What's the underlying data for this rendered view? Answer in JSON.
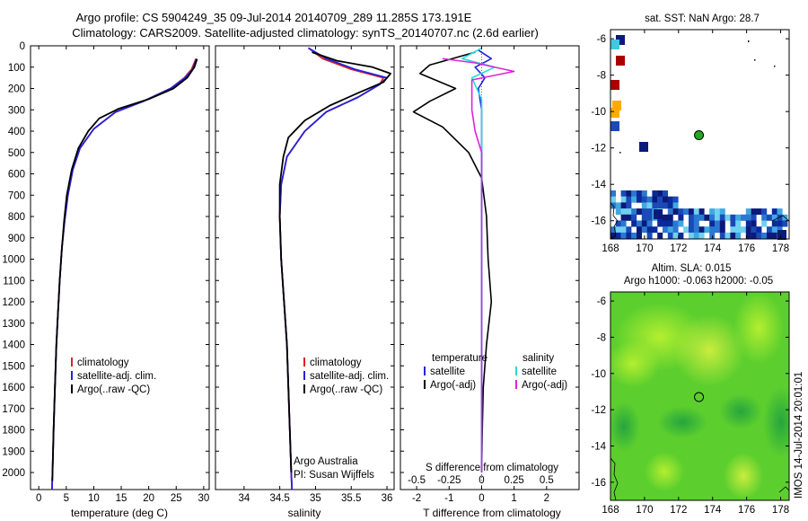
{
  "title": {
    "line1": "Argo profile: CS 5904249_35 09-Jul-2014 20140709_289 11.285S 173.191E",
    "line2": "Climatology: CARS2009. Satellite-adjusted climatology: synTS_20140707.nc (2.6d earlier)"
  },
  "side_label": "IMOS 14-Jul-2014 20:01:01",
  "colors": {
    "climatology": "#dd2222",
    "satellite": "#2222dd",
    "argo": "#000000",
    "cyan": "#22dddd",
    "magenta": "#dd22dd"
  },
  "chart_data": [
    {
      "id": "temperature",
      "type": "line",
      "xlabel": "temperature (deg C)",
      "xlim": [
        -1.5,
        31
      ],
      "ylim": [
        2080,
        0
      ],
      "xticks": [
        "0",
        "5",
        "10",
        "15",
        "20",
        "25",
        "30"
      ],
      "xtick_values": [
        0,
        5,
        10,
        15,
        20,
        25,
        30
      ],
      "yticks": [
        "0",
        "100",
        "200",
        "300",
        "400",
        "500",
        "600",
        "700",
        "800",
        "900",
        "1000",
        "1100",
        "1200",
        "1300",
        "1400",
        "1500",
        "1600",
        "1700",
        "1800",
        "1900",
        "2000"
      ],
      "ytick_values": [
        0,
        100,
        200,
        300,
        400,
        500,
        600,
        700,
        800,
        900,
        1000,
        1100,
        1200,
        1300,
        1400,
        1500,
        1600,
        1700,
        1800,
        1900,
        2000
      ],
      "legend": [
        "climatology",
        "satellite-adj. clim.",
        "Argo(..raw -QC)"
      ],
      "series": [
        {
          "name": "climatology",
          "color": "#dd2222",
          "points": [
            [
              28.6,
              60
            ],
            [
              27.8,
              110
            ],
            [
              26.5,
              150
            ],
            [
              24,
              200
            ],
            [
              19,
              260
            ],
            [
              14,
              310
            ],
            [
              10,
              390
            ],
            [
              7.5,
              480
            ],
            [
              6.2,
              580
            ],
            [
              5.3,
              700
            ],
            [
              4.7,
              820
            ],
            [
              4.2,
              950
            ],
            [
              3.8,
              1100
            ],
            [
              3.5,
              1250
            ],
            [
              3.2,
              1400
            ],
            [
              2.95,
              1600
            ],
            [
              2.7,
              1800
            ],
            [
              2.5,
              2000
            ],
            [
              2.4,
              2080
            ]
          ]
        },
        {
          "name": "satellite-adj. clim.",
          "color": "#2222dd",
          "points": [
            [
              28.7,
              60
            ],
            [
              28,
              110
            ],
            [
              26.6,
              150
            ],
            [
              24,
              200
            ],
            [
              19,
              260
            ],
            [
              14,
              310
            ],
            [
              10,
              390
            ],
            [
              7.5,
              480
            ],
            [
              6.2,
              580
            ],
            [
              5.3,
              700
            ],
            [
              4.7,
              820
            ],
            [
              4.2,
              950
            ],
            [
              3.8,
              1100
            ],
            [
              3.5,
              1250
            ],
            [
              3.2,
              1400
            ],
            [
              2.95,
              1600
            ],
            [
              2.7,
              1800
            ],
            [
              2.5,
              2000
            ],
            [
              2.4,
              2080
            ]
          ]
        },
        {
          "name": "Argo(..raw -QC)",
          "color": "#000000",
          "points": [
            [
              28.8,
              62
            ],
            [
              28.3,
              100
            ],
            [
              27,
              150
            ],
            [
              24.5,
              200
            ],
            [
              20,
              250
            ],
            [
              14.5,
              295
            ],
            [
              11,
              340
            ],
            [
              9,
              400
            ],
            [
              7.2,
              480
            ],
            [
              6,
              580
            ],
            [
              5.1,
              700
            ],
            [
              4.6,
              820
            ],
            [
              4.2,
              950
            ],
            [
              3.8,
              1100
            ],
            [
              3.5,
              1250
            ],
            [
              3.2,
              1400
            ],
            [
              2.95,
              1600
            ],
            [
              2.7,
              1800
            ],
            [
              2.5,
              2000
            ],
            [
              2.45,
              2040
            ]
          ]
        }
      ]
    },
    {
      "id": "salinity",
      "type": "line",
      "xlabel": "salinity",
      "xlim": [
        33.6,
        36.1
      ],
      "ylim": [
        2080,
        0
      ],
      "xticks": [
        "34",
        "34.5",
        "35",
        "35.5",
        "36"
      ],
      "xtick_values": [
        34,
        34.5,
        35,
        35.5,
        36
      ],
      "legend": [
        "climatology",
        "satellite-adj. clim.",
        "Argo(..raw -QC)"
      ],
      "notes": [
        "Argo Australia",
        "PI: Susan Wijffels"
      ],
      "series": [
        {
          "name": "climatology",
          "color": "#dd2222",
          "points": [
            [
              34.9,
              10
            ],
            [
              35.1,
              60
            ],
            [
              35.5,
              110
            ],
            [
              35.95,
              150
            ],
            [
              35.9,
              180
            ],
            [
              35.6,
              240
            ],
            [
              35.15,
              310
            ],
            [
              34.85,
              400
            ],
            [
              34.6,
              520
            ],
            [
              34.52,
              650
            ],
            [
              34.5,
              800
            ],
            [
              34.52,
              1000
            ],
            [
              34.56,
              1200
            ],
            [
              34.6,
              1400
            ],
            [
              34.62,
              1600
            ],
            [
              34.64,
              1800
            ],
            [
              34.66,
              2000
            ],
            [
              34.67,
              2080
            ]
          ]
        },
        {
          "name": "satellite-adj. clim.",
          "color": "#2222dd",
          "points": [
            [
              34.9,
              10
            ],
            [
              35.15,
              60
            ],
            [
              35.55,
              110
            ],
            [
              36.0,
              150
            ],
            [
              35.9,
              180
            ],
            [
              35.6,
              240
            ],
            [
              35.15,
              310
            ],
            [
              34.85,
              400
            ],
            [
              34.6,
              520
            ],
            [
              34.52,
              650
            ],
            [
              34.5,
              800
            ],
            [
              34.52,
              1000
            ],
            [
              34.56,
              1200
            ],
            [
              34.6,
              1400
            ],
            [
              34.62,
              1600
            ],
            [
              34.64,
              1800
            ],
            [
              34.66,
              2000
            ],
            [
              34.67,
              2080
            ]
          ]
        },
        {
          "name": "Argo(..raw -QC)",
          "color": "#000000",
          "points": [
            [
              34.95,
              30
            ],
            [
              35.3,
              70
            ],
            [
              35.8,
              100
            ],
            [
              36.05,
              130
            ],
            [
              35.95,
              170
            ],
            [
              35.6,
              220
            ],
            [
              35.2,
              280
            ],
            [
              34.85,
              350
            ],
            [
              34.62,
              430
            ],
            [
              34.55,
              520
            ],
            [
              34.5,
              650
            ],
            [
              34.5,
              800
            ],
            [
              34.52,
              1000
            ],
            [
              34.56,
              1200
            ],
            [
              34.6,
              1400
            ],
            [
              34.62,
              1600
            ],
            [
              34.64,
              1800
            ],
            [
              34.66,
              2000
            ]
          ]
        }
      ]
    },
    {
      "id": "difference",
      "type": "line",
      "xlabel": "T difference from climatology",
      "xlabel2": "S difference from climatology",
      "xlim": [
        -2.5,
        3
      ],
      "ylim": [
        2080,
        0
      ],
      "xticks": [
        "-2",
        "-1",
        "0",
        "1",
        "2"
      ],
      "xtick_values": [
        -2,
        -1,
        0,
        1,
        2
      ],
      "xticks_s": [
        "-0.5",
        "-0.25",
        "0",
        "0.25",
        "0.5"
      ],
      "xticks_s_values": [
        -2,
        -1,
        0,
        1,
        2
      ],
      "legend_left_title": "temperature",
      "legend_right_title": "salinity",
      "legend_left": [
        "satellite",
        "Argo(-adj)"
      ],
      "legend_right": [
        "satellite",
        "Argo(-adj)"
      ],
      "series": [
        {
          "name": "T satellite",
          "color": "#2222dd",
          "points": [
            [
              -0.1,
              20
            ],
            [
              0.3,
              60
            ],
            [
              -0.2,
              100
            ],
            [
              0.1,
              150
            ],
            [
              -0.1,
              200
            ],
            [
              0,
              300
            ],
            [
              0,
              500
            ],
            [
              0,
              800
            ],
            [
              0,
              1200
            ],
            [
              0,
              2000
            ]
          ]
        },
        {
          "name": "T Argo(-adj)",
          "color": "#000000",
          "points": [
            [
              -0.2,
              30
            ],
            [
              -1.6,
              90
            ],
            [
              -1.9,
              130
            ],
            [
              -0.8,
              200
            ],
            [
              -1.6,
              260
            ],
            [
              -2.1,
              310
            ],
            [
              -1.2,
              380
            ],
            [
              -0.4,
              500
            ],
            [
              0,
              620
            ],
            [
              0.15,
              800
            ],
            [
              0.2,
              1000
            ],
            [
              0.3,
              1200
            ],
            [
              0.15,
              1400
            ],
            [
              0.05,
              1600
            ],
            [
              0.02,
              1800
            ],
            [
              0,
              2000
            ]
          ]
        },
        {
          "name": "S satellite",
          "color": "#22dddd",
          "points": [
            [
              0,
              10
            ],
            [
              -0.6,
              60
            ],
            [
              0.4,
              100
            ],
            [
              -0.3,
              150
            ],
            [
              0,
              250
            ],
            [
              0,
              500
            ],
            [
              0,
              2000
            ]
          ]
        },
        {
          "name": "S Argo(-adj)",
          "color": "#dd22dd",
          "points": [
            [
              -1.2,
              60
            ],
            [
              -0.2,
              80
            ],
            [
              1.0,
              120
            ],
            [
              -0.3,
              160
            ],
            [
              -0.3,
              300
            ],
            [
              -0.2,
              400
            ],
            [
              0,
              500
            ],
            [
              0,
              2000
            ]
          ]
        }
      ]
    },
    {
      "id": "sst_map",
      "type": "heatmap",
      "title": "sat. SST: NaN Argo: 28.7",
      "xticks": [
        "168",
        "170",
        "172",
        "174",
        "176",
        "178"
      ],
      "xtick_values": [
        168,
        170,
        172,
        174,
        176,
        178
      ],
      "yticks": [
        "-6",
        "-8",
        "-10",
        "-12",
        "-14",
        "-16"
      ],
      "ytick_values": [
        -6,
        -8,
        -10,
        -12,
        -14,
        -16
      ],
      "xlim": [
        168,
        178.5
      ],
      "ylim": [
        -5.5,
        -17
      ],
      "argo_position": [
        173.2,
        -11.3
      ]
    },
    {
      "id": "sla_map",
      "type": "heatmap",
      "title1": "Altim. SLA: 0.015",
      "title2": "Argo h1000: -0.063 h2000: -0.05",
      "xticks": [
        "168",
        "170",
        "172",
        "174",
        "176",
        "178"
      ],
      "xtick_values": [
        168,
        170,
        172,
        174,
        176,
        178
      ],
      "yticks": [
        "-6",
        "-8",
        "-10",
        "-12",
        "-14",
        "-16"
      ],
      "ytick_values": [
        -6,
        -8,
        -10,
        -12,
        -14,
        -16
      ],
      "xlim": [
        168,
        178.5
      ],
      "ylim": [
        -5.5,
        -17
      ],
      "argo_position": [
        173.2,
        -11.3
      ]
    }
  ]
}
